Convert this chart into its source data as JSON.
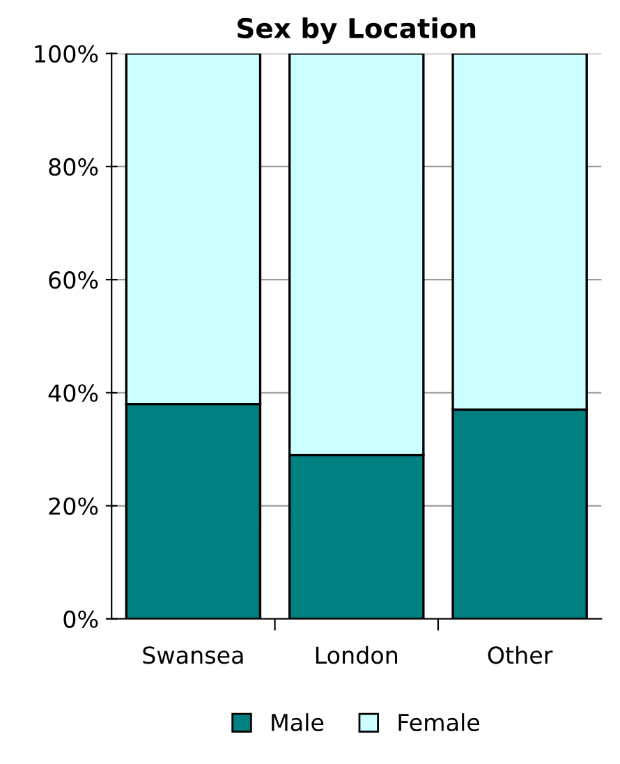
{
  "chart_data": {
    "type": "bar",
    "title": "Sex by Location",
    "categories": [
      "Swansea",
      "London",
      "Other"
    ],
    "series": [
      {
        "name": "Male",
        "color": "#008080",
        "values": [
          38,
          29,
          37
        ]
      },
      {
        "name": "Female",
        "color": "#ccffff",
        "values": [
          62,
          71,
          63
        ]
      }
    ],
    "stacked": true,
    "ylim": [
      0,
      100
    ],
    "yticks": [
      {
        "value": 0,
        "label": "0%"
      },
      {
        "value": 20,
        "label": "20%"
      },
      {
        "value": 40,
        "label": "40%"
      },
      {
        "value": 60,
        "label": "60%"
      },
      {
        "value": 80,
        "label": "80%"
      },
      {
        "value": 100,
        "label": "100%"
      }
    ],
    "grid": "y",
    "legend": "bottom"
  }
}
